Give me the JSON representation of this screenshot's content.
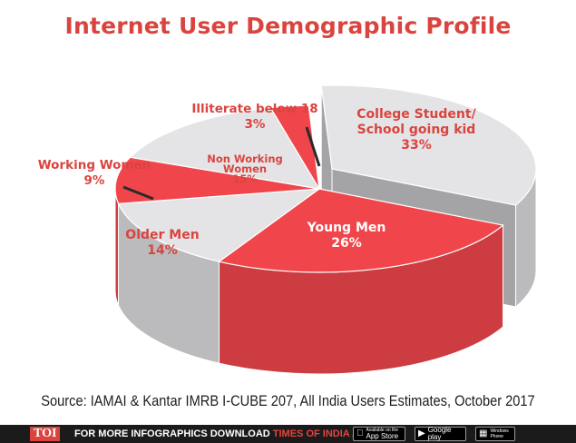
{
  "chart_data": {
    "type": "pie",
    "title": "Internet User Demographic Profile",
    "three_d": true,
    "slices": [
      {
        "label": "College Student/ School going kid",
        "value": 33,
        "value_text": "33%",
        "color": "#e4e4e6"
      },
      {
        "label": "Young Men",
        "value": 26,
        "value_text": "26%",
        "color": "#f0464b"
      },
      {
        "label": "Older Men",
        "value": 14,
        "value_text": "14%",
        "color": "#e4e4e6"
      },
      {
        "label": "Working Women",
        "value": 9,
        "value_text": "9%",
        "color": "#f0464b"
      },
      {
        "label": "Non Working Women",
        "value": 15,
        "value_text": "15%",
        "color": "#e4e4e6"
      },
      {
        "label": "Illiterate below 18",
        "value": 3,
        "value_text": "3%",
        "color": "#f0464b"
      }
    ]
  },
  "source": "Source: IAMAI & Kantar IMRB I-CUBE 207, All India Users Estimates, October 2017",
  "footer": {
    "logo": "TOI",
    "promo_text": "FOR MORE  INFOGRAPHICS DOWNLOAD",
    "promo_app": "TIMES OF INDIA  APP",
    "stores": [
      {
        "icon": "apple-icon",
        "small": "Available on the",
        "big": "App Store"
      },
      {
        "icon": "google-play-icon",
        "small": "",
        "big": "Google play"
      },
      {
        "icon": "windows-icon",
        "small": "Windows",
        "big": "Phone"
      }
    ]
  },
  "colors": {
    "accent": "#d9443f",
    "red": "#f0464b",
    "grey": "#e4e4e6"
  }
}
